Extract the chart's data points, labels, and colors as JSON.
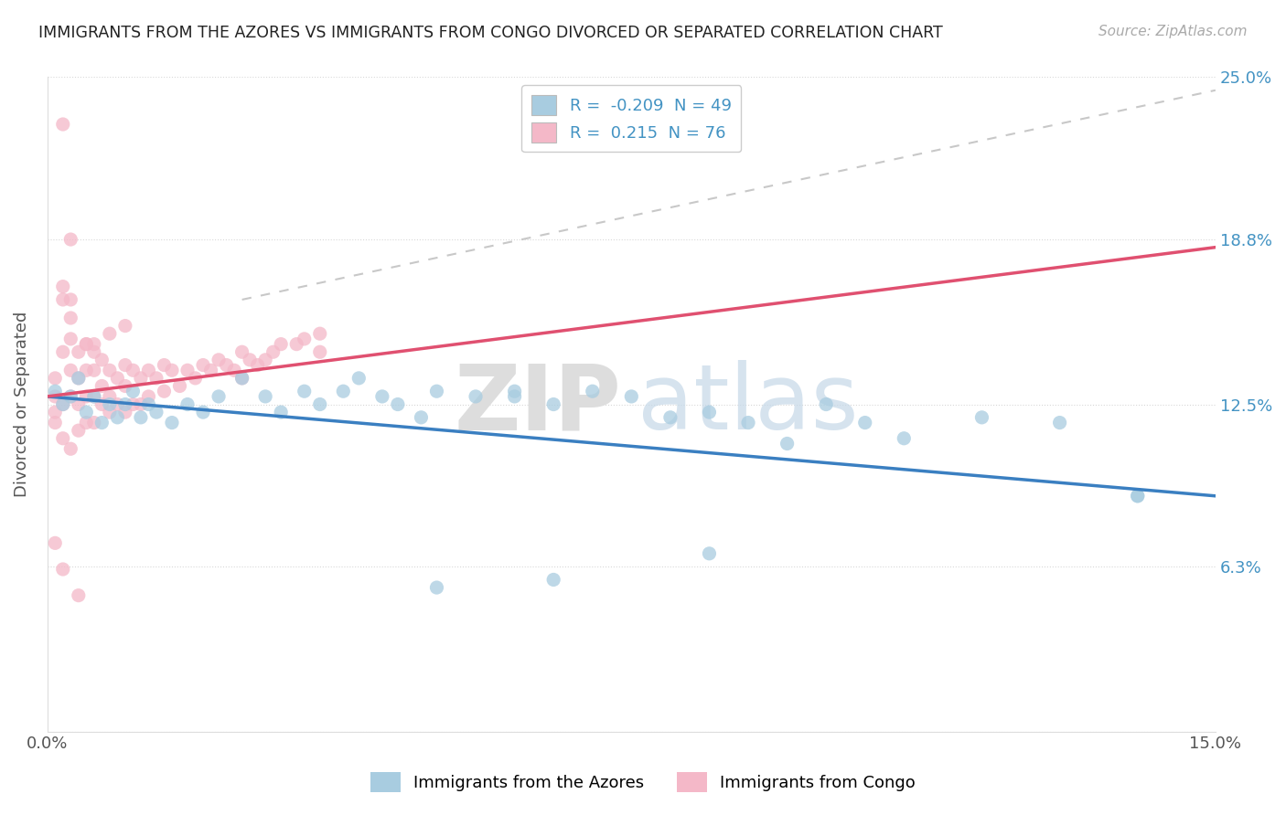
{
  "title": "IMMIGRANTS FROM THE AZORES VS IMMIGRANTS FROM CONGO DIVORCED OR SEPARATED CORRELATION CHART",
  "source": "Source: ZipAtlas.com",
  "ylabel": "Divorced or Separated",
  "x_min": 0.0,
  "x_max": 0.15,
  "y_min": 0.0,
  "y_max": 0.25,
  "y_ticks": [
    0.0,
    0.063,
    0.125,
    0.188,
    0.25
  ],
  "y_tick_labels_right": [
    "",
    "6.3%",
    "12.5%",
    "18.8%",
    "25.0%"
  ],
  "azores_color": "#a8cce0",
  "congo_color": "#f4b8c8",
  "azores_line_color": "#3a7fc1",
  "congo_line_color": "#e05070",
  "trend_dashed_color": "#c8c8c8",
  "legend_azores_label": "Immigrants from the Azores",
  "legend_congo_label": "Immigrants from Congo",
  "r_azores": -0.209,
  "n_azores": 49,
  "r_congo": 0.215,
  "n_congo": 76,
  "azores_scatter_x": [
    0.001,
    0.002,
    0.003,
    0.004,
    0.005,
    0.006,
    0.007,
    0.008,
    0.009,
    0.01,
    0.011,
    0.012,
    0.013,
    0.014,
    0.016,
    0.018,
    0.02,
    0.022,
    0.025,
    0.028,
    0.03,
    0.033,
    0.035,
    0.038,
    0.04,
    0.043,
    0.045,
    0.048,
    0.05,
    0.055,
    0.06,
    0.06,
    0.065,
    0.07,
    0.075,
    0.08,
    0.085,
    0.09,
    0.095,
    0.1,
    0.105,
    0.11,
    0.12,
    0.13,
    0.14,
    0.14,
    0.085,
    0.065,
    0.05
  ],
  "azores_scatter_y": [
    0.13,
    0.125,
    0.128,
    0.135,
    0.122,
    0.128,
    0.118,
    0.125,
    0.12,
    0.125,
    0.13,
    0.12,
    0.125,
    0.122,
    0.118,
    0.125,
    0.122,
    0.128,
    0.135,
    0.128,
    0.122,
    0.13,
    0.125,
    0.13,
    0.135,
    0.128,
    0.125,
    0.12,
    0.13,
    0.128,
    0.13,
    0.128,
    0.125,
    0.13,
    0.128,
    0.12,
    0.122,
    0.118,
    0.11,
    0.125,
    0.118,
    0.112,
    0.12,
    0.118,
    0.09,
    0.09,
    0.068,
    0.058,
    0.055
  ],
  "congo_scatter_x": [
    0.001,
    0.001,
    0.001,
    0.002,
    0.002,
    0.002,
    0.002,
    0.003,
    0.003,
    0.003,
    0.003,
    0.003,
    0.004,
    0.004,
    0.004,
    0.004,
    0.005,
    0.005,
    0.005,
    0.005,
    0.006,
    0.006,
    0.006,
    0.006,
    0.007,
    0.007,
    0.007,
    0.008,
    0.008,
    0.008,
    0.009,
    0.009,
    0.01,
    0.01,
    0.01,
    0.011,
    0.011,
    0.012,
    0.012,
    0.013,
    0.013,
    0.014,
    0.015,
    0.015,
    0.016,
    0.017,
    0.018,
    0.019,
    0.02,
    0.021,
    0.022,
    0.023,
    0.024,
    0.025,
    0.025,
    0.026,
    0.027,
    0.028,
    0.029,
    0.03,
    0.032,
    0.033,
    0.035,
    0.035,
    0.002,
    0.003,
    0.005,
    0.006,
    0.008,
    0.01,
    0.001,
    0.002,
    0.004,
    0.001,
    0.002,
    0.003
  ],
  "congo_scatter_y": [
    0.135,
    0.128,
    0.122,
    0.232,
    0.165,
    0.145,
    0.125,
    0.188,
    0.165,
    0.15,
    0.138,
    0.128,
    0.145,
    0.135,
    0.125,
    0.115,
    0.148,
    0.138,
    0.128,
    0.118,
    0.145,
    0.138,
    0.128,
    0.118,
    0.142,
    0.132,
    0.125,
    0.138,
    0.128,
    0.122,
    0.135,
    0.125,
    0.14,
    0.132,
    0.122,
    0.138,
    0.125,
    0.135,
    0.125,
    0.138,
    0.128,
    0.135,
    0.14,
    0.13,
    0.138,
    0.132,
    0.138,
    0.135,
    0.14,
    0.138,
    0.142,
    0.14,
    0.138,
    0.145,
    0.135,
    0.142,
    0.14,
    0.142,
    0.145,
    0.148,
    0.148,
    0.15,
    0.152,
    0.145,
    0.17,
    0.158,
    0.148,
    0.148,
    0.152,
    0.155,
    0.072,
    0.062,
    0.052,
    0.118,
    0.112,
    0.108
  ]
}
